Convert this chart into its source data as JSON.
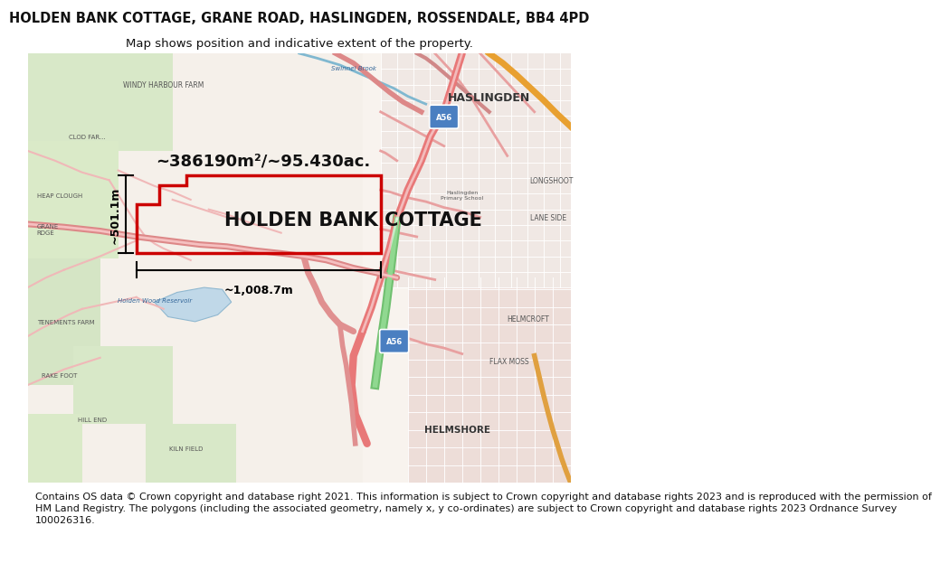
{
  "title_line1": "HOLDEN BANK COTTAGE, GRANE ROAD, HASLINGDEN, ROSSENDALE, BB4 4PD",
  "title_line2": "Map shows position and indicative extent of the property.",
  "property_label": "HOLDEN BANK COTTAGE",
  "area_label": "~386190m²/~95.430ac.",
  "width_label": "~1,008.7m",
  "height_label": "~501.1m",
  "footer_lines": [
    "Contains OS data © Crown copyright and database right 2021. This information is subject to Crown copyright and database rights 2023 and is reproduced with the permission of",
    "HM Land Registry. The polygons (including the associated geometry, namely x, y co-ordinates) are subject to Crown copyright and database rights 2023 Ordnance Survey",
    "100026316."
  ],
  "bg_color": "#ffffff",
  "map_bg": "#f7f2ee",
  "title_fontsize": 10.5,
  "subtitle_fontsize": 9.5,
  "property_label_fontsize": 15,
  "area_label_fontsize": 13,
  "footer_fontsize": 8,
  "border_color": "#dd0000",
  "border_linewidth": 2.2
}
